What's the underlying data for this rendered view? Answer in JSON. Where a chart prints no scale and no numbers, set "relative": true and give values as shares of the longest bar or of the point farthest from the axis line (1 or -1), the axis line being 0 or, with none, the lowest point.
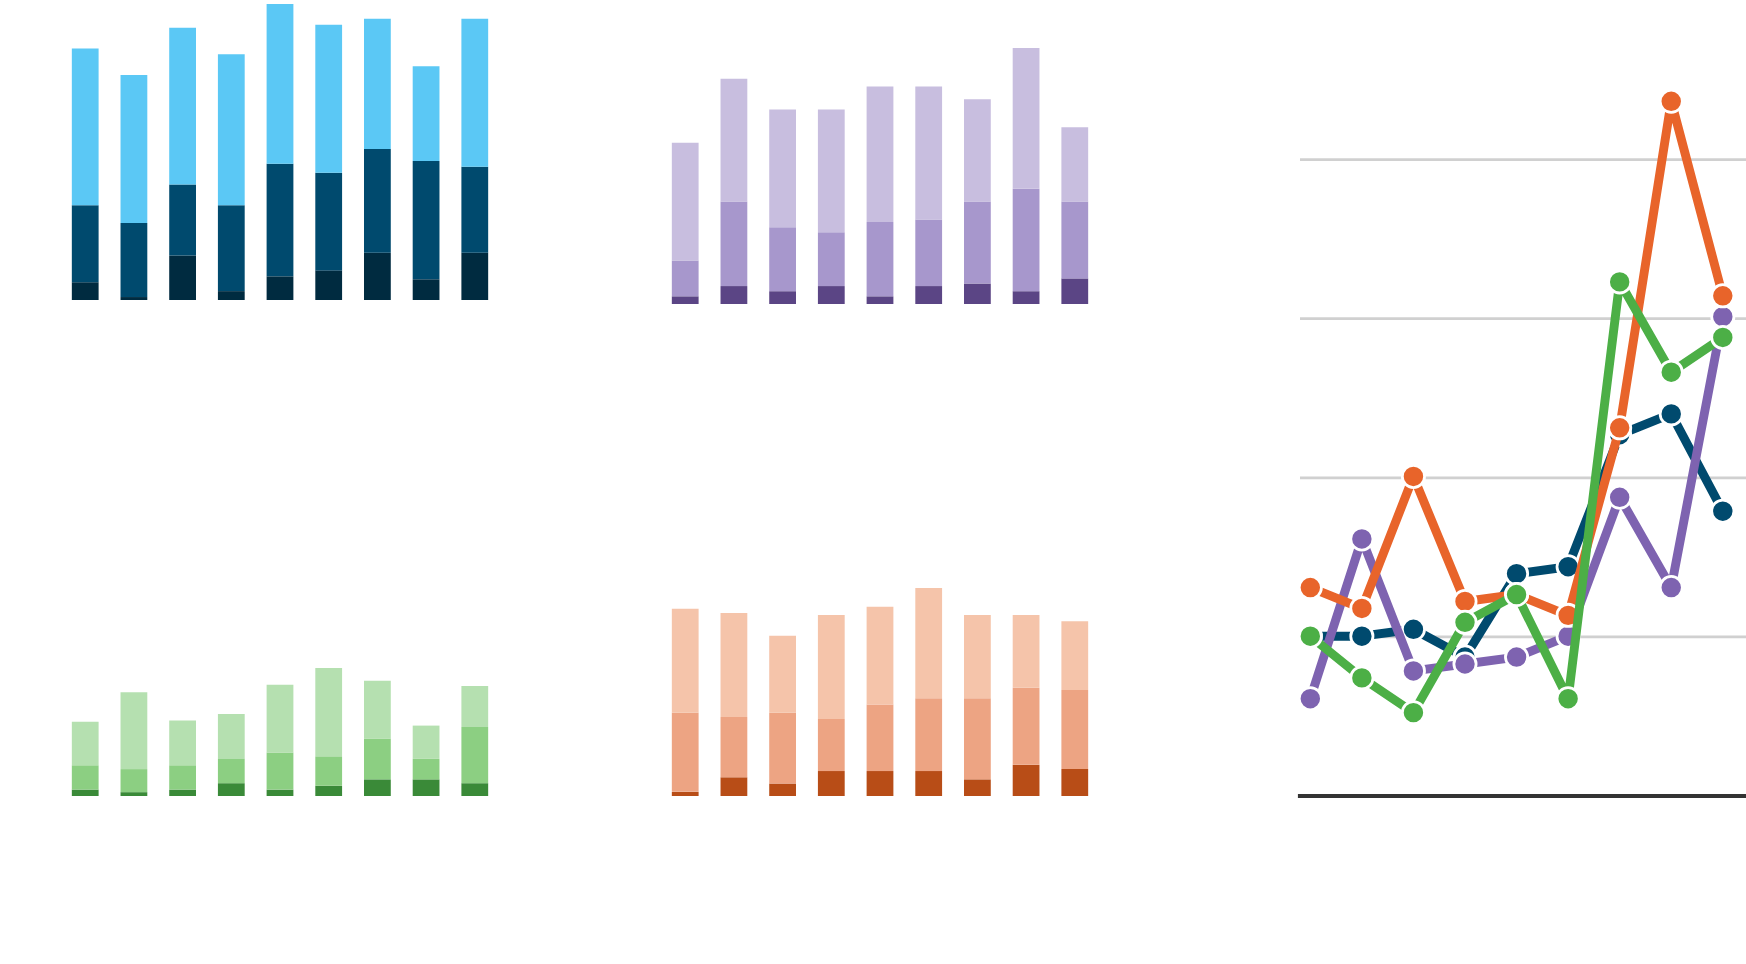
{
  "chart_data": [
    {
      "type": "bar",
      "stacked": true,
      "relative": true,
      "grid": false,
      "categories": [
        null,
        null,
        null,
        null,
        null,
        null,
        null,
        null,
        null
      ],
      "series": [
        {
          "color": "#002b40",
          "values": [
            0.06,
            0.01,
            0.15,
            0.03,
            0.08,
            0.1,
            0.16,
            0.07,
            0.16
          ]
        },
        {
          "color": "#004a6e",
          "values": [
            0.26,
            0.25,
            0.24,
            0.29,
            0.38,
            0.33,
            0.35,
            0.4,
            0.29
          ]
        },
        {
          "color": "#5bc8f5",
          "values": [
            0.53,
            0.5,
            0.53,
            0.51,
            0.54,
            0.5,
            0.44,
            0.32,
            0.5
          ]
        }
      ]
    },
    {
      "type": "bar",
      "stacked": true,
      "relative": true,
      "grid": false,
      "categories": [
        null,
        null,
        null,
        null,
        null,
        null,
        null,
        null,
        null
      ],
      "series": [
        {
          "color": "#5b4585",
          "values": [
            0.03,
            0.07,
            0.05,
            0.07,
            0.03,
            0.07,
            0.08,
            0.05,
            0.1
          ]
        },
        {
          "color": "#a797cc",
          "values": [
            0.14,
            0.33,
            0.25,
            0.21,
            0.29,
            0.26,
            0.32,
            0.4,
            0.3
          ]
        },
        {
          "color": "#c8bedf",
          "values": [
            0.46,
            0.48,
            0.46,
            0.48,
            0.53,
            0.52,
            0.4,
            0.55,
            0.29
          ]
        }
      ]
    },
    {
      "type": "bar",
      "stacked": true,
      "relative": true,
      "grid": false,
      "categories": [
        null,
        null,
        null,
        null,
        null,
        null,
        null,
        null,
        null
      ],
      "series": [
        {
          "color": "#3a8a38",
          "values": [
            0.05,
            0.03,
            0.05,
            0.1,
            0.05,
            0.08,
            0.13,
            0.13,
            0.1
          ]
        },
        {
          "color": "#8ccf82",
          "values": [
            0.19,
            0.18,
            0.19,
            0.19,
            0.29,
            0.23,
            0.32,
            0.16,
            0.44
          ]
        },
        {
          "color": "#b5e0b0",
          "values": [
            0.34,
            0.6,
            0.35,
            0.35,
            0.53,
            0.69,
            0.45,
            0.26,
            0.32
          ]
        }
      ]
    },
    {
      "type": "bar",
      "stacked": true,
      "relative": true,
      "grid": false,
      "categories": [
        null,
        null,
        null,
        null,
        null,
        null,
        null,
        null,
        null
      ],
      "series": [
        {
          "color": "#b84d17",
          "values": [
            0.02,
            0.09,
            0.06,
            0.12,
            0.12,
            0.12,
            0.08,
            0.15,
            0.13
          ]
        },
        {
          "color": "#eda483",
          "values": [
            0.38,
            0.29,
            0.34,
            0.25,
            0.32,
            0.35,
            0.39,
            0.37,
            0.38
          ]
        },
        {
          "color": "#f5c4aa",
          "values": [
            0.5,
            0.5,
            0.37,
            0.5,
            0.47,
            0.53,
            0.4,
            0.35,
            0.33
          ]
        }
      ]
    },
    {
      "type": "line",
      "relative": true,
      "grid": "y",
      "marker": "circle",
      "line_style": "solid",
      "categories": [
        null,
        null,
        null,
        null,
        null,
        null,
        null,
        null,
        null
      ],
      "series": [
        {
          "color": "#004a6e",
          "values": [
            0.23,
            0.23,
            0.24,
            0.2,
            0.32,
            0.33,
            0.52,
            0.55,
            0.41
          ]
        },
        {
          "color": "#7e63b0",
          "values": [
            0.14,
            0.37,
            0.18,
            0.19,
            0.2,
            0.23,
            0.43,
            0.3,
            0.69
          ]
        },
        {
          "color": "#e8642a",
          "values": [
            0.3,
            0.27,
            0.46,
            0.28,
            0.29,
            0.26,
            0.53,
            1,
            0.72
          ]
        },
        {
          "color": "#4caf46",
          "values": [
            0.23,
            0.17,
            0.12,
            0.25,
            0.29,
            0.14,
            0.74,
            0.61,
            0.66
          ]
        }
      ]
    }
  ]
}
